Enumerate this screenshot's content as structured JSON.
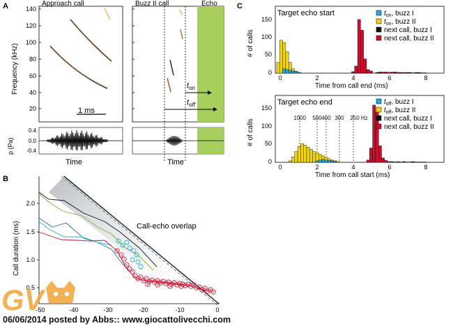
{
  "panel_labels": {
    "a": "A",
    "b": "B",
    "c": "C"
  },
  "panel_a": {
    "approach_title": "Approach call",
    "buzz_title": "Buzz II call",
    "echo_label": "Echo",
    "y_label": "Frequency (kHz)",
    "y_ticks": [
      "140",
      "120",
      "100",
      "80",
      "60",
      "40",
      "20"
    ],
    "scale_bar": "1 ms",
    "t_on": "t",
    "t_on_sub": "on",
    "t_off": "t",
    "t_off_sub": "off",
    "pressure_label": "p (Pa)",
    "pressure_ticks": [
      "0.4",
      "0.0",
      "-0.4"
    ],
    "time_left": "Time",
    "time_right": "Time"
  },
  "panel_b": {
    "y_label": "Call duration (ms)",
    "overlap_label": "Call-echo overlap",
    "y_ticks": [
      "2.0",
      "1.5",
      "1.0",
      "0.5"
    ],
    "x_ticks": [
      "-50",
      "-40",
      "-30",
      "-20",
      "-10",
      "0"
    ]
  },
  "panel_c": {
    "top": {
      "title": "Target echo start",
      "xlabel": "Time from call end (ms)",
      "ylabel": "# of calls",
      "y_ticks": [
        "150",
        "100",
        "50",
        "0"
      ],
      "x_ticks": [
        "0",
        "2",
        "4",
        "6",
        "8"
      ],
      "legend": [
        {
          "sym": "t",
          "sub": "on",
          "text": ", buzz I",
          "color": "#2aa7d6"
        },
        {
          "sym": "t",
          "sub": "on",
          "text": ", buzz II",
          "color": "#f0d313"
        },
        {
          "sym": "",
          "sub": "",
          "text": "next call, buzz I",
          "color": "#111111"
        },
        {
          "sym": "",
          "sub": "",
          "text": "next call, buzz II",
          "color": "#c8102e"
        }
      ]
    },
    "bottom": {
      "title": "Target echo end",
      "xlabel": "Time from call start (ms)",
      "ylabel": "# of calls",
      "y_ticks": [
        "150",
        "100",
        "50",
        "0"
      ],
      "x_ticks": [
        "0",
        "2",
        "4",
        "6",
        "8"
      ],
      "freq_labels": [
        "1000",
        "500",
        "400",
        "300",
        "250 Hz"
      ],
      "legend": [
        {
          "sym": "t",
          "sub": "off",
          "text": ", buzz I",
          "color": "#2aa7d6"
        },
        {
          "sym": "t",
          "sub": "off",
          "text": ", buzz II",
          "color": "#f0d313"
        },
        {
          "sym": "",
          "sub": "",
          "text": "next call, buzz I",
          "color": "#111111"
        },
        {
          "sym": "",
          "sub": "",
          "text": "next call, buzz II",
          "color": "#c8102e"
        }
      ]
    }
  },
  "watermark": {
    "logo_text": "GV"
  },
  "footer_text": "06/06/2014 posted by Abbs:: www.giocattolivecchi.com"
}
